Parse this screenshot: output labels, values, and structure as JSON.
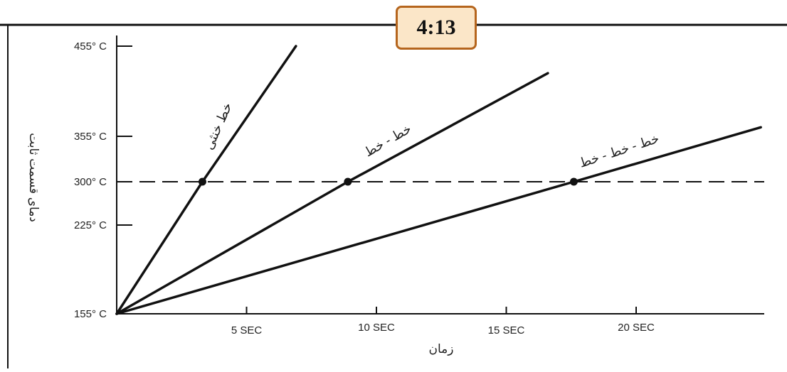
{
  "badge": {
    "text": "4:13"
  },
  "chart_data": {
    "type": "line",
    "title": "",
    "xlabel": "زمان",
    "ylabel": "دمای قسمت ثابت",
    "x_ticks": [
      {
        "value": 5,
        "label": "5 SEC"
      },
      {
        "value": 10,
        "label": "10 SEC"
      },
      {
        "value": 15,
        "label": "15 SEC"
      },
      {
        "value": 20,
        "label": "20 SEC"
      }
    ],
    "y_ticks": [
      {
        "value": 155,
        "label": "155° C"
      },
      {
        "value": 225,
        "label": "225° C"
      },
      {
        "value": 300,
        "label": "300° C"
      },
      {
        "value": 355,
        "label": "355° C"
      },
      {
        "value": 455,
        "label": "455° C"
      }
    ],
    "xlim": [
      0,
      25
    ],
    "ylim": [
      155,
      455
    ],
    "reference_line": {
      "y": 300,
      "style": "dashed"
    },
    "series": [
      {
        "name": "خط خنثی",
        "x": [
          0,
          3.3,
          6.9
        ],
        "y": [
          155,
          300,
          455
        ],
        "marker_index": 1
      },
      {
        "name": "خط - خط",
        "x": [
          0,
          8.9,
          16.6
        ],
        "y": [
          155,
          300,
          425
        ],
        "marker_index": 1
      },
      {
        "name": "خط - خط - خط",
        "x": [
          0,
          17.6,
          24.8
        ],
        "y": [
          155,
          300,
          365
        ],
        "marker_index": 1
      }
    ],
    "grid": false,
    "color": "#111111"
  }
}
